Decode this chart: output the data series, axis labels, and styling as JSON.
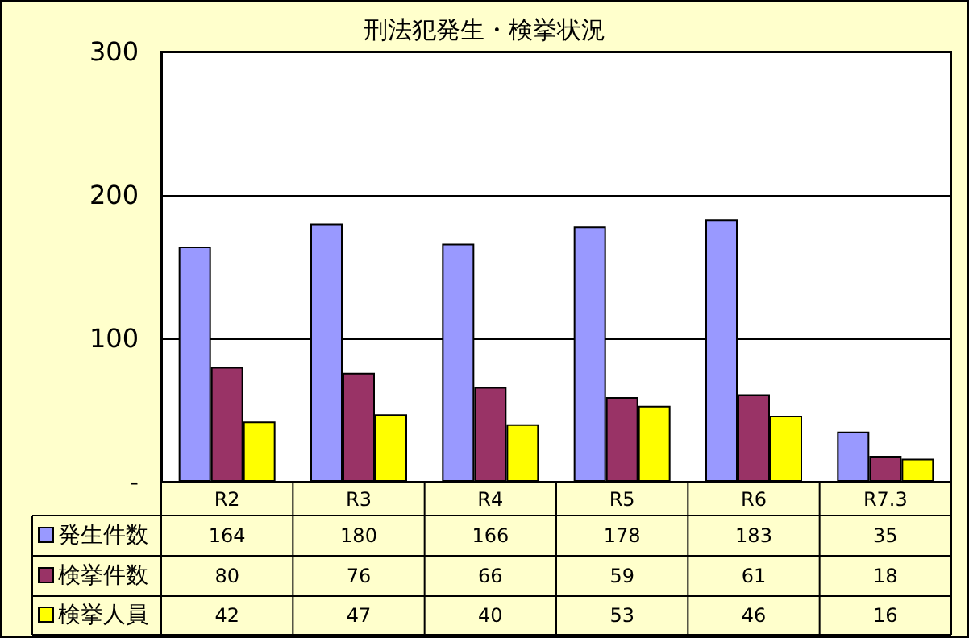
{
  "chart_data": {
    "type": "bar",
    "title": "刑法犯発生・検挙状況",
    "categories": [
      "R2",
      "R3",
      "R4",
      "R5",
      "R6",
      "R7.3"
    ],
    "series": [
      {
        "name": "発生件数",
        "color": "#9999ff",
        "values": [
          164,
          180,
          166,
          178,
          183,
          35
        ]
      },
      {
        "name": "検挙件数",
        "color": "#993366",
        "values": [
          80,
          76,
          66,
          59,
          61,
          18
        ]
      },
      {
        "name": "検挙人員",
        "color": "#ffff00",
        "values": [
          42,
          47,
          40,
          53,
          46,
          16
        ]
      }
    ],
    "ylim": [
      0,
      300
    ],
    "yticks": [
      {
        "value": 0,
        "label": "-"
      },
      100,
      200,
      300
    ],
    "grid": "y",
    "legend": "bottom",
    "data_labels": true
  }
}
